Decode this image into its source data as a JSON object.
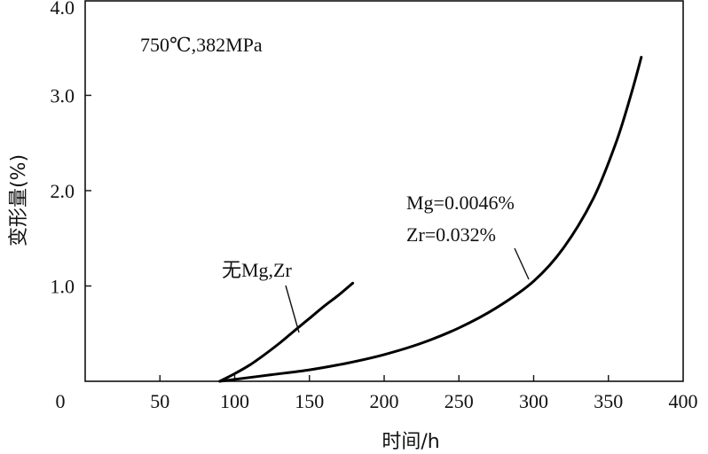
{
  "chart_data": {
    "type": "line",
    "title": "",
    "condition_label": "750℃,382MPa",
    "xlabel": "时间/h",
    "ylabel": "变形量(%)",
    "xlim": [
      0,
      400
    ],
    "ylim": [
      0,
      4.0
    ],
    "x_ticks": [
      {
        "value": 0,
        "label": "0"
      },
      {
        "value": 50,
        "label": "50"
      },
      {
        "value": 100,
        "label": "100"
      },
      {
        "value": 150,
        "label": "150"
      },
      {
        "value": 200,
        "label": "200"
      },
      {
        "value": 250,
        "label": "250"
      },
      {
        "value": 300,
        "label": "300"
      },
      {
        "value": 350,
        "label": "350"
      },
      {
        "value": 400,
        "label": "400"
      }
    ],
    "y_ticks": [
      {
        "value": 1.0,
        "label": "1.0"
      },
      {
        "value": 2.0,
        "label": "2.0"
      },
      {
        "value": 3.0,
        "label": "3.0"
      },
      {
        "value": 4.0,
        "label": "4.0"
      }
    ],
    "grid": false,
    "series": [
      {
        "name": "无Mg,Zr",
        "color": "#000000",
        "points": [
          [
            90,
            0.0
          ],
          [
            100,
            0.08
          ],
          [
            110,
            0.17
          ],
          [
            120,
            0.28
          ],
          [
            130,
            0.4
          ],
          [
            140,
            0.53
          ],
          [
            150,
            0.66
          ],
          [
            160,
            0.79
          ],
          [
            170,
            0.91
          ],
          [
            179,
            1.03
          ]
        ]
      },
      {
        "name": "Mg=0.0046%, Zr=0.032%",
        "color": "#000000",
        "points": [
          [
            90,
            0.0
          ],
          [
            100,
            0.02
          ],
          [
            125,
            0.07
          ],
          [
            150,
            0.12
          ],
          [
            175,
            0.19
          ],
          [
            200,
            0.28
          ],
          [
            225,
            0.4
          ],
          [
            250,
            0.56
          ],
          [
            275,
            0.77
          ],
          [
            300,
            1.05
          ],
          [
            320,
            1.4
          ],
          [
            340,
            1.92
          ],
          [
            355,
            2.5
          ],
          [
            365,
            3.0
          ],
          [
            372,
            3.4
          ]
        ]
      }
    ],
    "annotations": [
      {
        "text": "无Mg,Zr"
      },
      {
        "text": "Mg=0.0046%"
      },
      {
        "text": "Zr=0.032%"
      }
    ]
  }
}
